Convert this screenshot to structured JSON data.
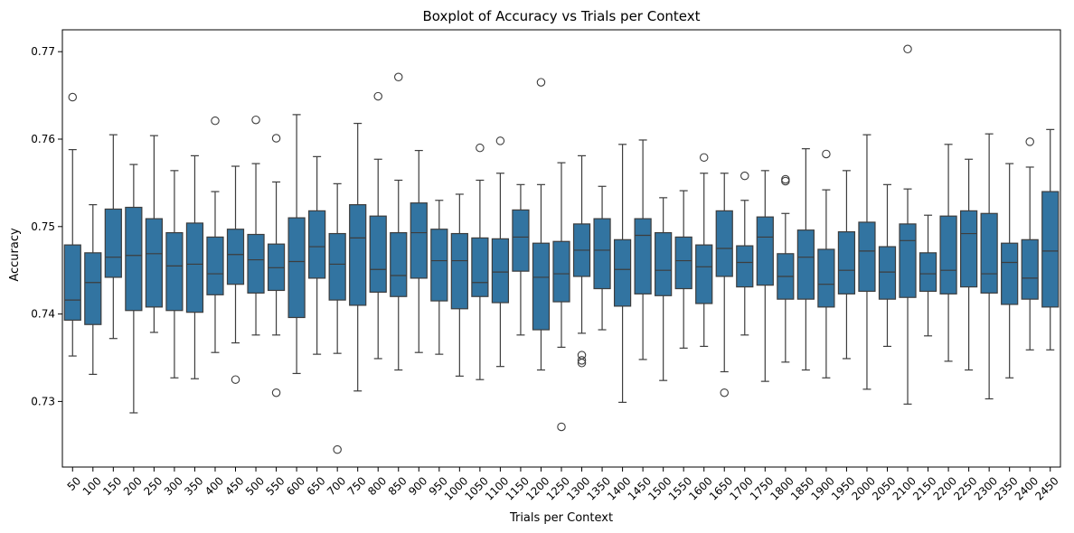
{
  "chart_data": {
    "type": "boxplot",
    "title": "Boxplot of Accuracy vs Trials per Context",
    "xlabel": "Trials per Context",
    "ylabel": "Accuracy",
    "ylim": [
      0.7225,
      0.7725
    ],
    "yticks": [
      0.73,
      0.74,
      0.75,
      0.76,
      0.77
    ],
    "ytick_labels": [
      "0.73",
      "0.74",
      "0.75",
      "0.76",
      "0.77"
    ],
    "grid": false,
    "colors": {
      "box_fill": "#3274a1",
      "line": "#3d3d3d"
    },
    "categories": [
      "50",
      "100",
      "150",
      "200",
      "250",
      "300",
      "350",
      "400",
      "450",
      "500",
      "550",
      "600",
      "650",
      "700",
      "750",
      "800",
      "850",
      "900",
      "950",
      "1000",
      "1050",
      "1100",
      "1150",
      "1200",
      "1250",
      "1300",
      "1350",
      "1400",
      "1450",
      "1500",
      "1550",
      "1600",
      "1650",
      "1700",
      "1750",
      "1800",
      "1850",
      "1900",
      "1950",
      "2000",
      "2050",
      "2100",
      "2150",
      "2200",
      "2250",
      "2300",
      "2350",
      "2400",
      "2450"
    ],
    "boxes": [
      {
        "whislo": 0.7352,
        "q1": 0.7393,
        "med": 0.7416,
        "q3": 0.7479,
        "whishi": 0.7588,
        "fliers": [
          0.7648
        ]
      },
      {
        "whislo": 0.7331,
        "q1": 0.7388,
        "med": 0.7436,
        "q3": 0.747,
        "whishi": 0.7525,
        "fliers": []
      },
      {
        "whislo": 0.7372,
        "q1": 0.7442,
        "med": 0.7465,
        "q3": 0.752,
        "whishi": 0.7605,
        "fliers": []
      },
      {
        "whislo": 0.7287,
        "q1": 0.7404,
        "med": 0.7467,
        "q3": 0.7522,
        "whishi": 0.7571,
        "fliers": []
      },
      {
        "whislo": 0.7379,
        "q1": 0.7408,
        "med": 0.7469,
        "q3": 0.7509,
        "whishi": 0.7604,
        "fliers": []
      },
      {
        "whislo": 0.7327,
        "q1": 0.7404,
        "med": 0.7455,
        "q3": 0.7493,
        "whishi": 0.7564,
        "fliers": []
      },
      {
        "whislo": 0.7326,
        "q1": 0.7402,
        "med": 0.7457,
        "q3": 0.7504,
        "whishi": 0.7581,
        "fliers": []
      },
      {
        "whislo": 0.7356,
        "q1": 0.7422,
        "med": 0.7446,
        "q3": 0.7488,
        "whishi": 0.754,
        "fliers": [
          0.7621
        ]
      },
      {
        "whislo": 0.7367,
        "q1": 0.7434,
        "med": 0.7468,
        "q3": 0.7497,
        "whishi": 0.7569,
        "fliers": [
          0.7325
        ]
      },
      {
        "whislo": 0.7376,
        "q1": 0.7424,
        "med": 0.7462,
        "q3": 0.7491,
        "whishi": 0.7572,
        "fliers": [
          0.7622
        ]
      },
      {
        "whislo": 0.7376,
        "q1": 0.7427,
        "med": 0.7453,
        "q3": 0.748,
        "whishi": 0.7551,
        "fliers": [
          0.7601,
          0.731
        ]
      },
      {
        "whislo": 0.7332,
        "q1": 0.7396,
        "med": 0.746,
        "q3": 0.751,
        "whishi": 0.7628,
        "fliers": []
      },
      {
        "whislo": 0.7354,
        "q1": 0.7441,
        "med": 0.7477,
        "q3": 0.7518,
        "whishi": 0.758,
        "fliers": []
      },
      {
        "whislo": 0.7355,
        "q1": 0.7416,
        "med": 0.7457,
        "q3": 0.7492,
        "whishi": 0.7549,
        "fliers": [
          0.7245
        ]
      },
      {
        "whislo": 0.7312,
        "q1": 0.741,
        "med": 0.7487,
        "q3": 0.7525,
        "whishi": 0.7618,
        "fliers": []
      },
      {
        "whislo": 0.7349,
        "q1": 0.7425,
        "med": 0.7451,
        "q3": 0.7512,
        "whishi": 0.7577,
        "fliers": [
          0.7649
        ]
      },
      {
        "whislo": 0.7336,
        "q1": 0.742,
        "med": 0.7444,
        "q3": 0.7493,
        "whishi": 0.7553,
        "fliers": [
          0.7671
        ]
      },
      {
        "whislo": 0.7356,
        "q1": 0.7441,
        "med": 0.7493,
        "q3": 0.7527,
        "whishi": 0.7587,
        "fliers": []
      },
      {
        "whislo": 0.7354,
        "q1": 0.7415,
        "med": 0.7461,
        "q3": 0.7497,
        "whishi": 0.753,
        "fliers": []
      },
      {
        "whislo": 0.7329,
        "q1": 0.7406,
        "med": 0.7461,
        "q3": 0.7492,
        "whishi": 0.7537,
        "fliers": []
      },
      {
        "whislo": 0.7325,
        "q1": 0.742,
        "med": 0.7436,
        "q3": 0.7487,
        "whishi": 0.7553,
        "fliers": [
          0.759
        ]
      },
      {
        "whislo": 0.734,
        "q1": 0.7413,
        "med": 0.7448,
        "q3": 0.7486,
        "whishi": 0.7561,
        "fliers": [
          0.7598
        ]
      },
      {
        "whislo": 0.7376,
        "q1": 0.7449,
        "med": 0.7488,
        "q3": 0.7519,
        "whishi": 0.7548,
        "fliers": []
      },
      {
        "whislo": 0.7336,
        "q1": 0.7382,
        "med": 0.7442,
        "q3": 0.7481,
        "whishi": 0.7548,
        "fliers": [
          0.7665
        ]
      },
      {
        "whislo": 0.7362,
        "q1": 0.7414,
        "med": 0.7446,
        "q3": 0.7483,
        "whishi": 0.7573,
        "fliers": [
          0.7271
        ]
      },
      {
        "whislo": 0.7378,
        "q1": 0.7443,
        "med": 0.7473,
        "q3": 0.7503,
        "whishi": 0.7581,
        "fliers": [
          0.7353,
          0.7347,
          0.7344
        ]
      },
      {
        "whislo": 0.7382,
        "q1": 0.7429,
        "med": 0.7473,
        "q3": 0.7509,
        "whishi": 0.7546,
        "fliers": []
      },
      {
        "whislo": 0.7299,
        "q1": 0.7409,
        "med": 0.7451,
        "q3": 0.7485,
        "whishi": 0.7594,
        "fliers": []
      },
      {
        "whislo": 0.7348,
        "q1": 0.7423,
        "med": 0.749,
        "q3": 0.7509,
        "whishi": 0.7599,
        "fliers": []
      },
      {
        "whislo": 0.7324,
        "q1": 0.7421,
        "med": 0.745,
        "q3": 0.7493,
        "whishi": 0.7533,
        "fliers": []
      },
      {
        "whislo": 0.7361,
        "q1": 0.7429,
        "med": 0.7461,
        "q3": 0.7488,
        "whishi": 0.7541,
        "fliers": []
      },
      {
        "whislo": 0.7363,
        "q1": 0.7412,
        "med": 0.7454,
        "q3": 0.7479,
        "whishi": 0.7561,
        "fliers": [
          0.7579
        ]
      },
      {
        "whislo": 0.7334,
        "q1": 0.7443,
        "med": 0.7475,
        "q3": 0.7518,
        "whishi": 0.7561,
        "fliers": [
          0.731
        ]
      },
      {
        "whislo": 0.7376,
        "q1": 0.7431,
        "med": 0.7459,
        "q3": 0.7478,
        "whishi": 0.753,
        "fliers": [
          0.7558
        ]
      },
      {
        "whislo": 0.7323,
        "q1": 0.7433,
        "med": 0.7488,
        "q3": 0.7511,
        "whishi": 0.7564,
        "fliers": []
      },
      {
        "whislo": 0.7345,
        "q1": 0.7417,
        "med": 0.7443,
        "q3": 0.7469,
        "whishi": 0.7515,
        "fliers": [
          0.7554,
          0.7552
        ]
      },
      {
        "whislo": 0.7336,
        "q1": 0.7417,
        "med": 0.7465,
        "q3": 0.7496,
        "whishi": 0.7589,
        "fliers": []
      },
      {
        "whislo": 0.7327,
        "q1": 0.7408,
        "med": 0.7434,
        "q3": 0.7474,
        "whishi": 0.7542,
        "fliers": [
          0.7583
        ]
      },
      {
        "whislo": 0.7349,
        "q1": 0.7423,
        "med": 0.745,
        "q3": 0.7494,
        "whishi": 0.7564,
        "fliers": []
      },
      {
        "whislo": 0.7314,
        "q1": 0.7426,
        "med": 0.7472,
        "q3": 0.7505,
        "whishi": 0.7605,
        "fliers": []
      },
      {
        "whislo": 0.7363,
        "q1": 0.7417,
        "med": 0.7448,
        "q3": 0.7477,
        "whishi": 0.7548,
        "fliers": []
      },
      {
        "whislo": 0.7297,
        "q1": 0.7419,
        "med": 0.7484,
        "q3": 0.7503,
        "whishi": 0.7543,
        "fliers": [
          0.7703
        ]
      },
      {
        "whislo": 0.7375,
        "q1": 0.7426,
        "med": 0.7446,
        "q3": 0.747,
        "whishi": 0.7513,
        "fliers": []
      },
      {
        "whislo": 0.7346,
        "q1": 0.7423,
        "med": 0.745,
        "q3": 0.7512,
        "whishi": 0.7594,
        "fliers": []
      },
      {
        "whislo": 0.7336,
        "q1": 0.7431,
        "med": 0.7492,
        "q3": 0.7518,
        "whishi": 0.7577,
        "fliers": []
      },
      {
        "whislo": 0.7303,
        "q1": 0.7424,
        "med": 0.7446,
        "q3": 0.7515,
        "whishi": 0.7606,
        "fliers": []
      },
      {
        "whislo": 0.7327,
        "q1": 0.7411,
        "med": 0.7459,
        "q3": 0.7481,
        "whishi": 0.7572,
        "fliers": []
      },
      {
        "whislo": 0.7359,
        "q1": 0.7417,
        "med": 0.7441,
        "q3": 0.7485,
        "whishi": 0.7568,
        "fliers": [
          0.7597
        ]
      },
      {
        "whislo": 0.7359,
        "q1": 0.7408,
        "med": 0.7472,
        "q3": 0.754,
        "whishi": 0.7611,
        "fliers": []
      }
    ]
  }
}
